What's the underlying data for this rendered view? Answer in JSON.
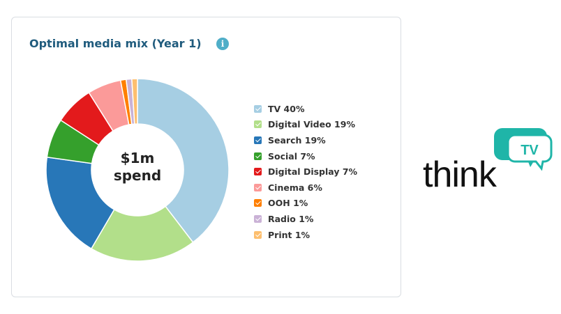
{
  "card": {
    "title": "Optimal media mix (Year 1)",
    "info_icon": "info-icon",
    "center_line1": "$1m",
    "center_line2": "spend"
  },
  "chart_data": {
    "type": "pie",
    "donut": true,
    "legend_position": "right",
    "categories": [
      "TV",
      "Digital Video",
      "Search",
      "Social",
      "Digital Display",
      "Cinema",
      "OOH",
      "Radio",
      "Print"
    ],
    "values": [
      40,
      19,
      19,
      7,
      7,
      6,
      1,
      1,
      1
    ],
    "labels": [
      "TV 40%",
      "Digital Video 19%",
      "Search 19%",
      "Social 7%",
      "Digital Display 7%",
      "Cinema 6%",
      "OOH 1%",
      "Radio 1%",
      "Print 1%"
    ],
    "colors": [
      "#a6cee3",
      "#b2df8a",
      "#2877b8",
      "#35a02c",
      "#e31a1c",
      "#fb9a99",
      "#ff7f00",
      "#cab2d6",
      "#fdbf6f"
    ]
  },
  "logo": {
    "word": "think",
    "badge": "TV",
    "badge_color": "#1fb5a8"
  }
}
